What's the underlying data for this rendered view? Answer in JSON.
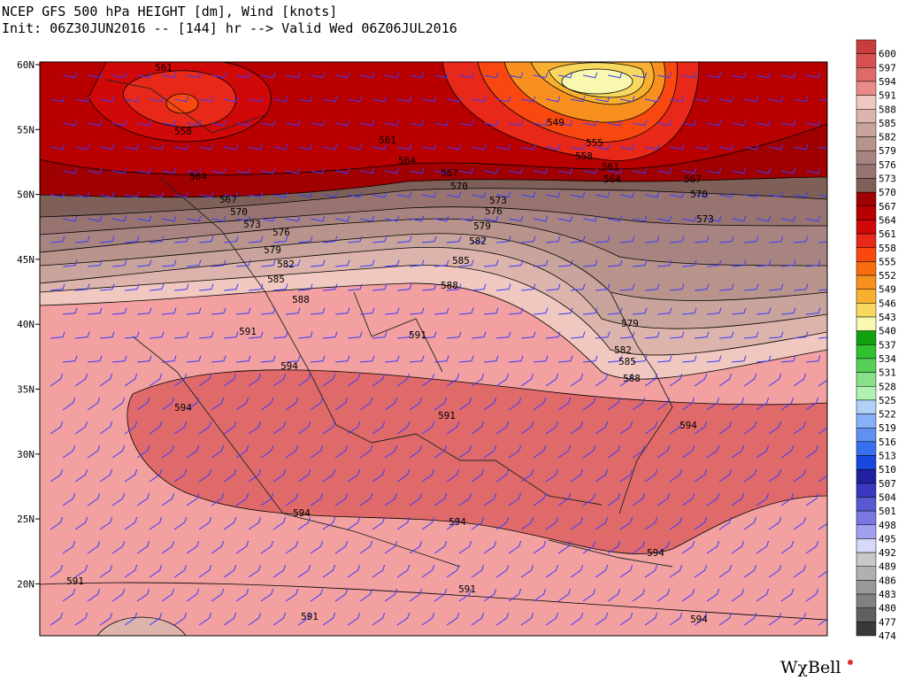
{
  "header": {
    "title": "NCEP GFS 500 hPa HEIGHT [dm], Wind [knots]",
    "subtitle": "Init: 06Z30JUN2016 -- [144] hr --> Valid Wed 06Z06JUL2016"
  },
  "latitudes": [
    "60N",
    "55N",
    "50N",
    "45N",
    "40N",
    "35N",
    "30N",
    "25N",
    "20N"
  ],
  "colorbar": {
    "levels": [
      600,
      597,
      594,
      591,
      588,
      585,
      582,
      579,
      576,
      573,
      570,
      567,
      564,
      561,
      558,
      555,
      552,
      549,
      546,
      543,
      540,
      537,
      534,
      531,
      528,
      525,
      522,
      519,
      516,
      513,
      510,
      507,
      504,
      501,
      498,
      495,
      492,
      489,
      486,
      483,
      480,
      477,
      474
    ],
    "colors": [
      "#c83c3c",
      "#d85050",
      "#e06a6a",
      "#ec8a8a",
      "#f0c8c0",
      "#dcb4ac",
      "#c8a49c",
      "#b8948c",
      "#a88480",
      "#987470",
      "#7e6058",
      "#a00000",
      "#b80000",
      "#d00808",
      "#e82818",
      "#f84810",
      "#f86c10",
      "#f89020",
      "#f8b030",
      "#f8d860",
      "#f8f8b0",
      "#10a010",
      "#30c030",
      "#58d058",
      "#88e088",
      "#b0f0b0",
      "#b0d0f8",
      "#88b0f8",
      "#6090f0",
      "#3870f0",
      "#1848e0",
      "#2020a0",
      "#3838c0",
      "#5858d0",
      "#7878e0",
      "#a0a0f0",
      "#d8d8f8",
      "#c8c8c8",
      "#b0b0b0",
      "#989898",
      "#808080",
      "#606060",
      "#383838"
    ]
  },
  "contour_labels": [
    "561",
    "558",
    "564",
    "561",
    "564",
    "549",
    "555",
    "558",
    "561",
    "564",
    "567",
    "567",
    "570",
    "573",
    "576",
    "579",
    "582",
    "585",
    "588",
    "567",
    "570",
    "573",
    "576",
    "579",
    "582",
    "585",
    "588",
    "570",
    "573",
    "591",
    "594",
    "591",
    "594",
    "591",
    "594",
    "594",
    "594",
    "594",
    "591",
    "591",
    "591",
    "594",
    "579",
    "582",
    "585",
    "588"
  ],
  "logo": "WχBell"
}
